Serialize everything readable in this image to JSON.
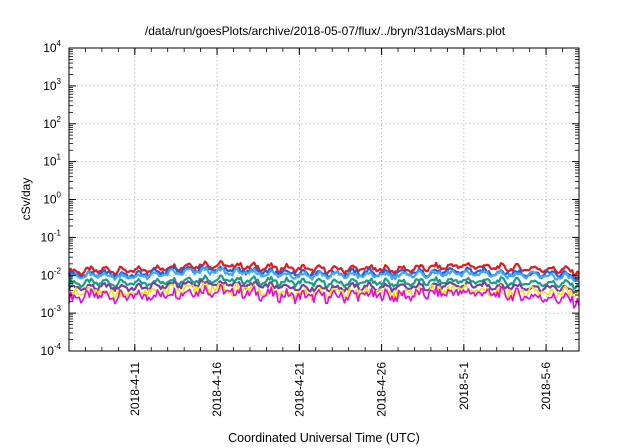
{
  "chart_data": {
    "type": "line",
    "title": "/data/run/goesPlots/archive/2018-05-07/flux/../bryn/31daysMars.plot",
    "xlabel": "Coordinated Universal Time (UTC)",
    "ylabel": "cSv/day",
    "yscale": "log",
    "ylim": [
      0.0001,
      10000
    ],
    "xlim": [
      "2018-04-07",
      "2018-05-08"
    ],
    "grid": true,
    "y_ticks": [
      {
        "base": "10",
        "exp": "-4"
      },
      {
        "base": "10",
        "exp": "-3"
      },
      {
        "base": "10",
        "exp": "-2"
      },
      {
        "base": "10",
        "exp": "-1"
      },
      {
        "base": "10",
        "exp": "0"
      },
      {
        "base": "10",
        "exp": "1"
      },
      {
        "base": "10",
        "exp": "2"
      },
      {
        "base": "10",
        "exp": "3"
      },
      {
        "base": "10",
        "exp": "4"
      }
    ],
    "x_ticks": [
      {
        "label": "2018-4-11",
        "date": "2018-04-11"
      },
      {
        "label": "2018-4-16",
        "date": "2018-04-16"
      },
      {
        "label": "2018-4-21",
        "date": "2018-04-21"
      },
      {
        "label": "2018-4-26",
        "date": "2018-04-26"
      },
      {
        "label": "2018-5-1",
        "date": "2018-05-01"
      },
      {
        "label": "2018-5-6",
        "date": "2018-05-06"
      }
    ],
    "series": [
      {
        "color": "#e41a1c",
        "x": [
          "2018-04-07",
          "2018-04-09",
          "2018-04-11",
          "2018-04-13",
          "2018-04-15",
          "2018-04-17",
          "2018-04-19",
          "2018-04-21",
          "2018-04-23",
          "2018-04-25",
          "2018-04-27",
          "2018-04-29",
          "2018-05-01",
          "2018-05-03",
          "2018-05-05",
          "2018-05-07",
          "2018-05-08"
        ],
        "y": [
          0.012,
          0.014,
          0.013,
          0.016,
          0.019,
          0.018,
          0.016,
          0.015,
          0.014,
          0.015,
          0.014,
          0.016,
          0.018,
          0.016,
          0.015,
          0.014,
          0.012
        ]
      },
      {
        "color": "#1f5fd8",
        "x": [
          "2018-04-07",
          "2018-04-09",
          "2018-04-11",
          "2018-04-13",
          "2018-04-15",
          "2018-04-17",
          "2018-04-19",
          "2018-04-21",
          "2018-04-23",
          "2018-04-25",
          "2018-04-27",
          "2018-04-29",
          "2018-05-01",
          "2018-05-03",
          "2018-05-05",
          "2018-05-07",
          "2018-05-08"
        ],
        "y": [
          0.01,
          0.011,
          0.01,
          0.013,
          0.015,
          0.014,
          0.012,
          0.012,
          0.011,
          0.012,
          0.011,
          0.012,
          0.013,
          0.012,
          0.011,
          0.011,
          0.009
        ]
      },
      {
        "color": "#3fa9f5",
        "x": [
          "2018-04-07",
          "2018-04-09",
          "2018-04-11",
          "2018-04-13",
          "2018-04-15",
          "2018-04-17",
          "2018-04-19",
          "2018-04-21",
          "2018-04-23",
          "2018-04-25",
          "2018-04-27",
          "2018-04-29",
          "2018-05-01",
          "2018-05-03",
          "2018-05-05",
          "2018-05-07",
          "2018-05-08"
        ],
        "y": [
          0.009,
          0.01,
          0.009,
          0.011,
          0.013,
          0.012,
          0.011,
          0.01,
          0.01,
          0.01,
          0.01,
          0.011,
          0.011,
          0.011,
          0.01,
          0.009,
          0.008
        ]
      },
      {
        "color": "#16a085",
        "x": [
          "2018-04-07",
          "2018-04-09",
          "2018-04-11",
          "2018-04-13",
          "2018-04-15",
          "2018-04-17",
          "2018-04-19",
          "2018-04-21",
          "2018-04-23",
          "2018-04-25",
          "2018-04-27",
          "2018-04-29",
          "2018-05-01",
          "2018-05-03",
          "2018-05-05",
          "2018-05-07",
          "2018-05-08"
        ],
        "y": [
          0.006,
          0.0065,
          0.006,
          0.007,
          0.008,
          0.0075,
          0.007,
          0.0065,
          0.0062,
          0.0066,
          0.0062,
          0.0068,
          0.0072,
          0.0068,
          0.0064,
          0.006,
          0.0055
        ]
      },
      {
        "color": "#7b3fa0",
        "x": [
          "2018-04-07",
          "2018-04-09",
          "2018-04-11",
          "2018-04-13",
          "2018-04-15",
          "2018-04-17",
          "2018-04-19",
          "2018-04-21",
          "2018-04-23",
          "2018-04-25",
          "2018-04-27",
          "2018-04-29",
          "2018-05-01",
          "2018-05-03",
          "2018-05-05",
          "2018-05-07",
          "2018-05-08"
        ],
        "y": [
          0.0045,
          0.005,
          0.0046,
          0.0054,
          0.0062,
          0.0058,
          0.0052,
          0.0048,
          0.0046,
          0.005,
          0.0046,
          0.0052,
          0.0055,
          0.0052,
          0.0048,
          0.0045,
          0.004
        ]
      },
      {
        "color": "#f0e400",
        "x": [
          "2018-04-07",
          "2018-04-09",
          "2018-04-11",
          "2018-04-13",
          "2018-04-15",
          "2018-04-17",
          "2018-04-19",
          "2018-04-21",
          "2018-04-23",
          "2018-04-25",
          "2018-04-27",
          "2018-04-29",
          "2018-05-01",
          "2018-05-03",
          "2018-05-05",
          "2018-05-07",
          "2018-05-08"
        ],
        "y": [
          0.0032,
          0.0035,
          0.0032,
          0.0038,
          0.0044,
          0.0041,
          0.0037,
          0.0034,
          0.0033,
          0.0036,
          0.0033,
          0.0037,
          0.004,
          0.0037,
          0.0034,
          0.0034,
          0.003
        ]
      },
      {
        "color": "#ee00ee",
        "x": [
          "2018-04-07",
          "2018-04-09",
          "2018-04-11",
          "2018-04-13",
          "2018-04-15",
          "2018-04-17",
          "2018-04-19",
          "2018-04-21",
          "2018-04-23",
          "2018-04-25",
          "2018-04-27",
          "2018-04-29",
          "2018-05-01",
          "2018-05-03",
          "2018-05-05",
          "2018-05-07",
          "2018-05-08"
        ],
        "y": [
          0.0025,
          0.003,
          0.0026,
          0.0033,
          0.004,
          0.0036,
          0.0031,
          0.0028,
          0.0027,
          0.0031,
          0.0028,
          0.0033,
          0.0036,
          0.0032,
          0.0028,
          0.0024,
          0.002
        ]
      }
    ]
  }
}
